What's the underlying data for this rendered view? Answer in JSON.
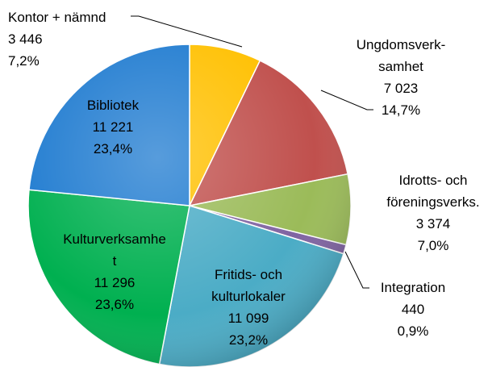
{
  "chart_data": {
    "type": "pie",
    "categories": [
      "Kontor + nämnd",
      "Ungdomsverk-\nsamhet",
      "Idrotts- och\nföreningsverks.",
      "Integration",
      "Fritids- och\nkulturlokaler",
      "Kulturverksamhe\nt",
      "Bibliotek"
    ],
    "values": [
      3446,
      7023,
      3374,
      440,
      11099,
      11296,
      11221
    ],
    "value_labels": [
      "3 446",
      "7 023",
      "3 374",
      "440",
      "11 099",
      "11 296",
      "11 221"
    ],
    "percentages": [
      7.2,
      14.7,
      7.0,
      0.9,
      23.2,
      23.6,
      23.4
    ],
    "percentage_labels": [
      "7,2%",
      "14,7%",
      "7,0%",
      "0,9%",
      "23,2%",
      "23,6%",
      "23,4%"
    ],
    "colors": [
      "#ffc000",
      "#c0504d",
      "#9bbb59",
      "#8064a2",
      "#4bacc6",
      "#00b050",
      "#1f7bd0"
    ]
  }
}
